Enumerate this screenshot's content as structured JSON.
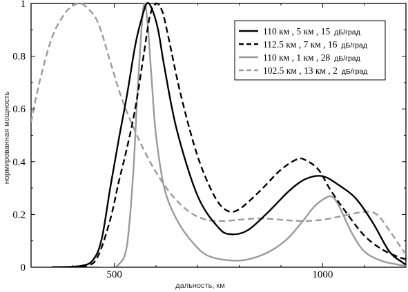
{
  "chart_data": {
    "type": "line",
    "xlabel": "дальность,  км",
    "ylabel": "нормированная мощность",
    "xlim": [
      300,
      1200
    ],
    "ylim": [
      0,
      1
    ],
    "x_ticks": [
      {
        "value": 500,
        "label": "500"
      },
      {
        "value": 1000,
        "label": "1000"
      }
    ],
    "y_ticks": [
      {
        "value": 0,
        "label": "0"
      },
      {
        "value": 0.2,
        "label": "0.2"
      },
      {
        "value": 0.4,
        "label": "0.4"
      },
      {
        "value": 0.6,
        "label": "0.6"
      },
      {
        "value": 0.8,
        "label": "0.8"
      },
      {
        "value": 1,
        "label": "1"
      }
    ],
    "legend_placement": "top-right",
    "series": [
      {
        "name": "110 км , 5 км , 15  дБ/град",
        "name_main": "110 км , 5 км , 15",
        "name_unit": "дБ/град",
        "color": "#000000",
        "dash": "solid",
        "x": [
          350,
          420,
          450,
          470,
          490,
          510,
          530,
          550,
          565,
          578,
          590,
          605,
          620,
          650,
          700,
          750,
          780,
          820,
          870,
          920,
          960,
          1000,
          1040,
          1080,
          1120,
          1160,
          1190,
          1200
        ],
        "y": [
          0,
          0.005,
          0.03,
          0.11,
          0.3,
          0.48,
          0.65,
          0.84,
          0.94,
          1.0,
          0.98,
          0.9,
          0.76,
          0.52,
          0.27,
          0.15,
          0.125,
          0.14,
          0.21,
          0.29,
          0.335,
          0.345,
          0.31,
          0.26,
          0.17,
          0.06,
          0.02,
          0.01
        ]
      },
      {
        "name": "112.5 км , 7 км , 16  дБ/град",
        "name_main": "112.5 км , 7 км , 16",
        "name_unit": "дБ/град",
        "color": "#000000",
        "dash": "dashed",
        "x": [
          350,
          430,
          460,
          490,
          510,
          530,
          550,
          570,
          585,
          600,
          615,
          630,
          660,
          700,
          740,
          770,
          800,
          850,
          900,
          940,
          960,
          990,
          1020,
          1060,
          1100,
          1140,
          1180,
          1200
        ],
        "y": [
          0,
          0.005,
          0.04,
          0.18,
          0.32,
          0.45,
          0.6,
          0.8,
          0.95,
          1.0,
          0.97,
          0.87,
          0.65,
          0.42,
          0.27,
          0.215,
          0.22,
          0.29,
          0.37,
          0.41,
          0.405,
          0.37,
          0.29,
          0.2,
          0.12,
          0.07,
          0.04,
          0.03
        ]
      },
      {
        "name": "110 км , 1 км , 28  дБ/град",
        "name_main": "110 км , 1 км , 28",
        "name_unit": "дБ/град",
        "color": "#9a9a9a",
        "dash": "solid",
        "x": [
          460,
          490,
          510,
          530,
          545,
          555,
          565,
          572,
          580,
          590,
          600,
          620,
          650,
          690,
          730,
          800,
          860,
          910,
          950,
          980,
          1010,
          1025,
          1040,
          1070,
          1100,
          1140,
          1180,
          1200
        ],
        "y": [
          0,
          0.0,
          0.01,
          0.08,
          0.35,
          0.65,
          0.9,
          1.0,
          0.92,
          0.7,
          0.5,
          0.3,
          0.18,
          0.09,
          0.04,
          0.025,
          0.05,
          0.1,
          0.17,
          0.23,
          0.265,
          0.265,
          0.23,
          0.13,
          0.06,
          0.025,
          0.01,
          0.005
        ]
      },
      {
        "name": "102.5 км , 13 км , 2  дБ/град",
        "name_main": "102.5 км , 13 км , 2",
        "name_unit": "дБ/град",
        "color": "#9a9a9a",
        "dash": "dashed",
        "x": [
          300,
          320,
          350,
          380,
          400,
          415,
          430,
          460,
          490,
          520,
          560,
          600,
          640,
          680,
          720,
          760,
          800,
          850,
          900,
          950,
          1000,
          1050,
          1100,
          1130,
          1160,
          1190,
          1200
        ],
        "y": [
          0.55,
          0.7,
          0.87,
          0.96,
          0.99,
          1.0,
          0.99,
          0.93,
          0.78,
          0.63,
          0.48,
          0.36,
          0.27,
          0.21,
          0.18,
          0.175,
          0.18,
          0.185,
          0.18,
          0.175,
          0.18,
          0.195,
          0.21,
          0.2,
          0.14,
          0.07,
          0.05
        ]
      }
    ]
  }
}
